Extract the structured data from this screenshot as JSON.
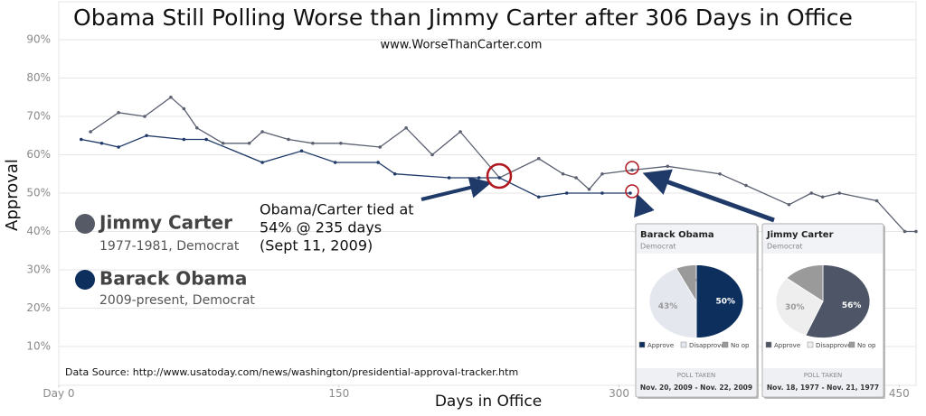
{
  "chart_data": {
    "type": "line",
    "title": "Obama Still Polling Worse than Jimmy Carter after 306 Days in Office",
    "subtitle": "www.WorseThanCarter.com",
    "x_label": "Days in Office",
    "y_label": "Approval",
    "source": "Data Source:  http://www.usatoday.com/news/washington/presidential-approval-tracker.htm",
    "annotation": [
      "Obama/Carter tied at",
      "54% @ 235 days",
      "(Sept 11, 2009)"
    ],
    "xlim": [
      0,
      460
    ],
    "ylim": [
      0,
      100
    ],
    "xticks": [
      {
        "value": 0,
        "label": "Day 0"
      },
      150,
      300,
      450
    ],
    "yticks": [
      {
        "value": 10,
        "label": "10%"
      },
      {
        "value": 20,
        "label": "20%"
      },
      {
        "value": 30,
        "label": "30%"
      },
      {
        "value": 40,
        "label": "40%"
      },
      {
        "value": 50,
        "label": "50%"
      },
      {
        "value": 60,
        "label": "60%"
      },
      {
        "value": 70,
        "label": "70%"
      },
      {
        "value": 80,
        "label": "80%"
      },
      {
        "value": 90,
        "label": "90%"
      }
    ],
    "grid": true,
    "series": [
      {
        "name": "Jimmy Carter",
        "detail": "1977-1981, Democrat",
        "color": "#5a6070",
        "x": [
          17,
          32,
          46,
          60,
          67,
          74,
          88,
          102,
          109,
          123,
          136,
          151,
          172,
          186,
          200,
          215,
          236,
          257,
          270,
          277,
          284,
          291,
          307,
          326,
          354,
          368,
          391,
          403,
          409,
          418,
          438,
          453,
          459
        ],
        "values": [
          66,
          71,
          70,
          75,
          72,
          67,
          63,
          63,
          66,
          64,
          63,
          63,
          62,
          67,
          60,
          66,
          54,
          59,
          55,
          54,
          51,
          55,
          56,
          57,
          55,
          52,
          47,
          50,
          49,
          50,
          48,
          40,
          40
        ]
      },
      {
        "name": "Barack Obama",
        "detail": "2009-present, Democrat",
        "color": "#1f3a68",
        "x": [
          12,
          23,
          32,
          47,
          67,
          79,
          109,
          130,
          148,
          171,
          180,
          209,
          225,
          236,
          257,
          272,
          291,
          306
        ],
        "values": [
          64,
          63,
          62,
          65,
          64,
          64,
          58,
          61,
          58,
          58,
          55,
          54,
          54,
          54,
          49,
          50,
          50,
          50
        ]
      }
    ]
  },
  "polls": [
    {
      "type": "pie",
      "name": "Barack Obama",
      "party": "Democrat",
      "labels": [
        "Approve",
        "Disapprove",
        "No op"
      ],
      "values": [
        50,
        43,
        7
      ],
      "value_labels": [
        "50%",
        "43%",
        "7%"
      ],
      "colors": [
        "#0d2f5e",
        "#e4e7ee",
        "#9a9a9a"
      ],
      "footer": "POLL TAKEN",
      "dates": "Nov. 20, 2009 - Nov. 22, 2009"
    },
    {
      "type": "pie",
      "name": "Jimmy Carter",
      "party": "Democrat",
      "labels": [
        "Approve",
        "Disapprove",
        "No op"
      ],
      "values": [
        56,
        30,
        14
      ],
      "value_labels": [
        "56%",
        "30%",
        "14%"
      ],
      "colors": [
        "#4e5566",
        "#eeeeee",
        "#9a9a9a"
      ],
      "footer": "POLL TAKEN",
      "dates": "Nov. 18, 1977 - Nov. 21, 1977"
    }
  ]
}
